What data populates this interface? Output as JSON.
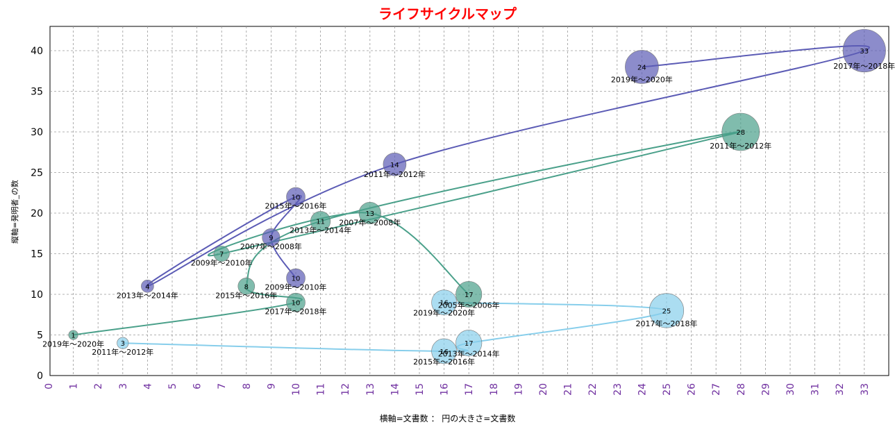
{
  "chart_data": {
    "type": "scatter",
    "title": "ライフサイクルマップ",
    "xlabel": "横軸=文書数 ： 円の大きさ=文書数",
    "ylabel": "縦軸=発明者_の数",
    "xlim": [
      0,
      34
    ],
    "ylim": [
      0,
      43
    ],
    "x_ticks": [
      0,
      1,
      2,
      3,
      4,
      5,
      6,
      7,
      8,
      9,
      10,
      11,
      12,
      13,
      14,
      15,
      16,
      17,
      18,
      19,
      20,
      21,
      22,
      23,
      24,
      25,
      26,
      27,
      28,
      29,
      30,
      31,
      32,
      33
    ],
    "y_ticks": [
      0,
      5,
      10,
      15,
      20,
      25,
      30,
      35,
      40
    ],
    "grid": true,
    "series": [
      {
        "color": "#5b5bb5",
        "points": [
          {
            "period": "2009年～2010年",
            "x": 10,
            "y": 12,
            "size": 10
          },
          {
            "period": "2007年～2008年",
            "x": 9,
            "y": 17,
            "size": 9
          },
          {
            "period": "2015年～2016年",
            "x": 10,
            "y": 22,
            "size": 10
          },
          {
            "period": "2013年～2014年",
            "x": 4,
            "y": 11,
            "size": 4
          },
          {
            "period": "2011年～2012年",
            "x": 14,
            "y": 26,
            "size": 14
          },
          {
            "period": "2017年～2018年",
            "x": 33,
            "y": 40,
            "size": 33
          },
          {
            "period": "2019年～2020年",
            "x": 24,
            "y": 38,
            "size": 24
          }
        ]
      },
      {
        "color": "#4aa08a",
        "points": [
          {
            "period": "2019年～2020年",
            "x": 1,
            "y": 5,
            "size": 1
          },
          {
            "period": "2017年～2018年",
            "x": 10,
            "y": 9,
            "size": 10
          },
          {
            "period": "2015年～2016年",
            "x": 8,
            "y": 11,
            "size": 8
          },
          {
            "period": "2013年～2014年",
            "x": 11,
            "y": 19,
            "size": 11
          },
          {
            "period": "2011年～2012年",
            "x": 28,
            "y": 30,
            "size": 28
          },
          {
            "period": "2009年～2010年",
            "x": 7,
            "y": 15,
            "size": 7
          },
          {
            "period": "2007年～2008年",
            "x": 13,
            "y": 20,
            "size": 13
          },
          {
            "period": "2005年～2006年",
            "x": 17,
            "y": 10,
            "size": 17
          }
        ]
      },
      {
        "color": "#87ceeb",
        "points": [
          {
            "period": "2011年～2012年",
            "x": 3,
            "y": 4,
            "size": 3
          },
          {
            "period": "2015年～2016年",
            "x": 16,
            "y": 3,
            "size": 16
          },
          {
            "period": "2013年～2014年",
            "x": 17,
            "y": 4,
            "size": 17
          },
          {
            "period": "2017年～2018年",
            "x": 25,
            "y": 8,
            "size": 25
          },
          {
            "period": "2019年～2020年",
            "x": 16,
            "y": 9,
            "size": 16
          }
        ]
      }
    ]
  }
}
